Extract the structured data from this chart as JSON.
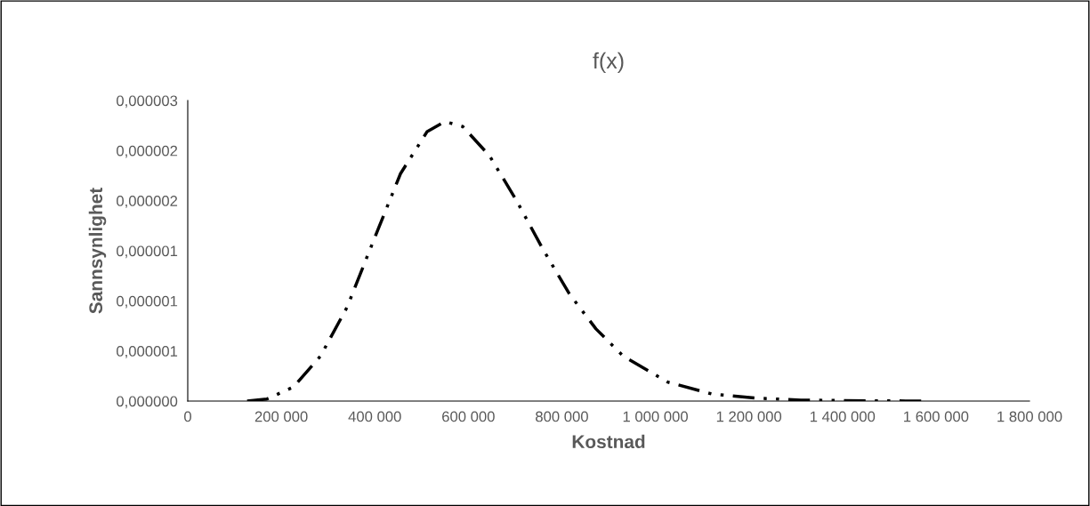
{
  "chart_data": {
    "type": "line",
    "title": "f(x)",
    "xlabel": "Kostnad",
    "ylabel": "Sannsynlighet",
    "series": [
      {
        "color": "#000000",
        "x": [
          127000,
          169000,
          226000,
          284000,
          341000,
          398000,
          455000,
          512000,
          550000,
          588000,
          645000,
          702000,
          759000,
          816000,
          873000,
          931000,
          1026000,
          1121000,
          1216000,
          1311000,
          1450000,
          1581000
        ],
        "values": [
          0.0,
          2e-08,
          1.4e-07,
          4.5e-07,
          9.4e-07,
          1.61e-06,
          2.27e-06,
          2.69e-06,
          2.79e-06,
          2.74e-06,
          2.45e-06,
          2.01e-06,
          1.52e-06,
          1.07e-06,
          7.2e-07,
          4.5e-07,
          1.9e-07,
          7e-08,
          3e-08,
          1e-08,
          3e-09,
          0.0
        ]
      }
    ],
    "xlim": [
      0,
      1800000
    ],
    "xticks": [
      {
        "value": 0,
        "label": "0"
      },
      {
        "value": 200000,
        "label": "200 000"
      },
      {
        "value": 400000,
        "label": "400 000"
      },
      {
        "value": 600000,
        "label": "600 000"
      },
      {
        "value": 800000,
        "label": "800 000"
      },
      {
        "value": 1000000,
        "label": "1 000 000"
      },
      {
        "value": 1200000,
        "label": "1 200 000"
      },
      {
        "value": 1400000,
        "label": "1 400 000"
      },
      {
        "value": 1600000,
        "label": "1 600 000"
      },
      {
        "value": 1800000,
        "label": "1 800 000"
      }
    ],
    "ylim": [
      0,
      3e-06
    ],
    "yticks": [
      {
        "value": 0,
        "label": "0,000000"
      },
      {
        "value": 5e-07,
        "label": "0,000001"
      },
      {
        "value": 1e-06,
        "label": "0,000001"
      },
      {
        "value": 1.5e-06,
        "label": "0,000001"
      },
      {
        "value": 2e-06,
        "label": "0,000002"
      },
      {
        "value": 2.5e-06,
        "label": "0,000002"
      },
      {
        "value": 3e-06,
        "label": "0,000003"
      }
    ],
    "grid": false,
    "legend": false,
    "marker": "none",
    "line_style": "dashed"
  }
}
